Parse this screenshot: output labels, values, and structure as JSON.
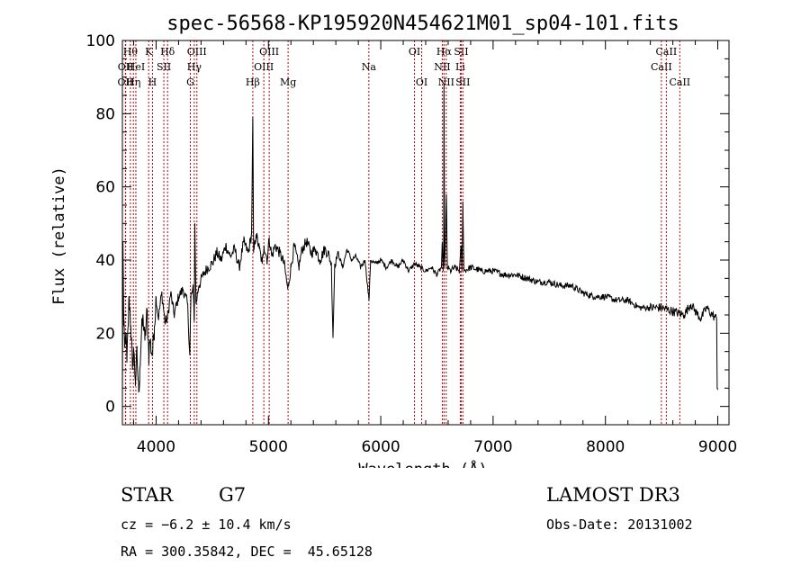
{
  "chart_data": {
    "type": "line",
    "title": "spec-56568-KP195920N454621M01_sp04-101.fits",
    "xlabel": "Wavelength (Å)",
    "ylabel": "Flux (relative)",
    "xlim": [
      3700,
      9100
    ],
    "ylim": [
      -5,
      100
    ],
    "xticks": [
      4000,
      5000,
      6000,
      7000,
      8000,
      9000
    ],
    "yticks": [
      0,
      20,
      40,
      60,
      80,
      100
    ],
    "series": [
      {
        "name": "flux",
        "anchors": [
          [
            3700,
            1
          ],
          [
            3705,
            45
          ],
          [
            3712,
            22
          ],
          [
            3720,
            16
          ],
          [
            3730,
            20
          ],
          [
            3740,
            12
          ],
          [
            3760,
            30
          ],
          [
            3775,
            22
          ],
          [
            3790,
            10
          ],
          [
            3800,
            16
          ],
          [
            3815,
            7
          ],
          [
            3830,
            14
          ],
          [
            3845,
            4
          ],
          [
            3855,
            10
          ],
          [
            3870,
            20
          ],
          [
            3885,
            24
          ],
          [
            3900,
            18
          ],
          [
            3920,
            26
          ],
          [
            3935,
            14
          ],
          [
            3945,
            18
          ],
          [
            3968,
            14
          ],
          [
            3985,
            22
          ],
          [
            4000,
            30
          ],
          [
            4020,
            24
          ],
          [
            4050,
            31
          ],
          [
            4080,
            23
          ],
          [
            4101,
            24
          ],
          [
            4130,
            31
          ],
          [
            4160,
            25
          ],
          [
            4200,
            30
          ],
          [
            4240,
            32
          ],
          [
            4280,
            28
          ],
          [
            4300,
            14
          ],
          [
            4310,
            30
          ],
          [
            4330,
            32
          ],
          [
            4340,
            24
          ],
          [
            4345,
            50
          ],
          [
            4355,
            28
          ],
          [
            4380,
            33
          ],
          [
            4420,
            36
          ],
          [
            4460,
            38
          ],
          [
            4500,
            39
          ],
          [
            4540,
            42
          ],
          [
            4580,
            40
          ],
          [
            4620,
            44
          ],
          [
            4660,
            41
          ],
          [
            4700,
            43
          ],
          [
            4740,
            38
          ],
          [
            4780,
            45
          ],
          [
            4820,
            42
          ],
          [
            4850,
            47
          ],
          [
            4861,
            79
          ],
          [
            4868,
            42
          ],
          [
            4890,
            47
          ],
          [
            4920,
            43
          ],
          [
            4945,
            39
          ],
          [
            4960,
            44
          ],
          [
            4990,
            40
          ],
          [
            5007,
            46
          ],
          [
            5030,
            41
          ],
          [
            5060,
            44
          ],
          [
            5100,
            42
          ],
          [
            5140,
            39
          ],
          [
            5172,
            32
          ],
          [
            5200,
            38
          ],
          [
            5230,
            44
          ],
          [
            5270,
            38
          ],
          [
            5300,
            43
          ],
          [
            5340,
            45
          ],
          [
            5380,
            42
          ],
          [
            5420,
            43
          ],
          [
            5460,
            40
          ],
          [
            5500,
            43
          ],
          [
            5530,
            42
          ],
          [
            5560,
            39
          ],
          [
            5575,
            19
          ],
          [
            5590,
            39
          ],
          [
            5620,
            42
          ],
          [
            5660,
            38
          ],
          [
            5700,
            43
          ],
          [
            5740,
            40
          ],
          [
            5780,
            41
          ],
          [
            5820,
            38
          ],
          [
            5860,
            40
          ],
          [
            5895,
            29
          ],
          [
            5910,
            40
          ],
          [
            5950,
            39
          ],
          [
            6000,
            40
          ],
          [
            6050,
            38
          ],
          [
            6100,
            40
          ],
          [
            6150,
            38
          ],
          [
            6200,
            40
          ],
          [
            6250,
            37
          ],
          [
            6300,
            39
          ],
          [
            6350,
            38
          ],
          [
            6400,
            37
          ],
          [
            6450,
            38
          ],
          [
            6500,
            36
          ],
          [
            6540,
            38
          ],
          [
            6548,
            45
          ],
          [
            6555,
            37
          ],
          [
            6560,
            42
          ],
          [
            6563,
            88
          ],
          [
            6568,
            38
          ],
          [
            6575,
            44
          ],
          [
            6584,
            58
          ],
          [
            6592,
            38
          ],
          [
            6620,
            37
          ],
          [
            6660,
            38
          ],
          [
            6700,
            37
          ],
          [
            6716,
            44
          ],
          [
            6723,
            37
          ],
          [
            6731,
            56
          ],
          [
            6740,
            37
          ],
          [
            6800,
            38
          ],
          [
            6900,
            37
          ],
          [
            7000,
            37
          ],
          [
            7100,
            36
          ],
          [
            7200,
            36
          ],
          [
            7300,
            35
          ],
          [
            7400,
            34
          ],
          [
            7500,
            34
          ],
          [
            7600,
            33
          ],
          [
            7700,
            33
          ],
          [
            7800,
            31
          ],
          [
            7900,
            30
          ],
          [
            8000,
            30
          ],
          [
            8100,
            29
          ],
          [
            8200,
            29
          ],
          [
            8300,
            27
          ],
          [
            8400,
            27
          ],
          [
            8500,
            27
          ],
          [
            8600,
            26
          ],
          [
            8700,
            25
          ],
          [
            8760,
            28
          ],
          [
            8800,
            26
          ],
          [
            8850,
            24
          ],
          [
            8900,
            27
          ],
          [
            8950,
            25
          ],
          [
            8990,
            24
          ],
          [
            8995,
            5
          ],
          [
            9000,
            5
          ]
        ]
      }
    ],
    "line_markers": [
      {
        "wl": 3727,
        "label": "OII",
        "row": 2
      },
      {
        "wl": 3729,
        "label": "OII",
        "row": 1
      },
      {
        "wl": 3771,
        "label": "Hθ",
        "row": 0
      },
      {
        "wl": 3798,
        "label": "Hη",
        "row": 2
      },
      {
        "wl": 3820,
        "label": "HeI",
        "row": 1
      },
      {
        "wl": 3934,
        "label": "K",
        "row": 0
      },
      {
        "wl": 3968,
        "label": "H",
        "row": 2
      },
      {
        "wl": 4069,
        "label": "SII",
        "row": 1
      },
      {
        "wl": 4102,
        "label": "Hδ",
        "row": 0
      },
      {
        "wl": 4305,
        "label": "G",
        "row": 2
      },
      {
        "wl": 4340,
        "label": "Hγ",
        "row": 1
      },
      {
        "wl": 4363,
        "label": "OIII",
        "row": 0
      },
      {
        "wl": 4861,
        "label": "Hβ",
        "row": 2
      },
      {
        "wl": 4959,
        "label": "OIII",
        "row": 1
      },
      {
        "wl": 5007,
        "label": "OIII",
        "row": 0
      },
      {
        "wl": 5175,
        "label": "Mg",
        "row": 2
      },
      {
        "wl": 5894,
        "label": "Na",
        "row": 1
      },
      {
        "wl": 6300,
        "label": "OI",
        "row": 0
      },
      {
        "wl": 6364,
        "label": "OI",
        "row": 2
      },
      {
        "wl": 6548,
        "label": "NII",
        "row": 1
      },
      {
        "wl": 6563,
        "label": "Hα",
        "row": 0
      },
      {
        "wl": 6583,
        "label": "NII",
        "row": 2
      },
      {
        "wl": 6708,
        "label": "Li",
        "row": 1
      },
      {
        "wl": 6716,
        "label": "SII",
        "row": 0
      },
      {
        "wl": 6731,
        "label": "SII",
        "row": 2
      },
      {
        "wl": 8498,
        "label": "CaII",
        "row": 1
      },
      {
        "wl": 8542,
        "label": "CaII",
        "row": 0
      },
      {
        "wl": 8662,
        "label": "CaII",
        "row": 2
      }
    ]
  },
  "info": {
    "class": "STAR",
    "subclass": "G7",
    "survey": "LAMOST DR3",
    "cz": "cz = −6.2 ± 10.4 km/s",
    "obs_date": "Obs-Date: 20131002",
    "coords": "RA = 300.35842, DEC =  45.65128"
  },
  "colors": {
    "line_marker": "#c00000",
    "spectrum": "#000000"
  }
}
